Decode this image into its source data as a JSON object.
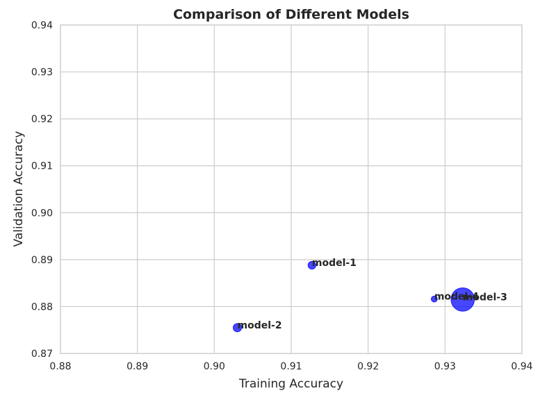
{
  "chart_data": {
    "type": "scatter",
    "title": "Comparison of Different Models",
    "xlabel": "Training Accuracy",
    "ylabel": "Validation Accuracy",
    "xlim": [
      0.88,
      0.94
    ],
    "ylim": [
      0.87,
      0.94
    ],
    "xticks": [
      "0.88",
      "0.89",
      "0.90",
      "0.91",
      "0.92",
      "0.93",
      "0.94"
    ],
    "yticks": [
      "0.87",
      "0.88",
      "0.89",
      "0.90",
      "0.91",
      "0.92",
      "0.93",
      "0.94"
    ],
    "grid": true,
    "marker_color": "#0000ff",
    "points": [
      {
        "label": "model-1",
        "x": 0.9127,
        "y": 0.8888,
        "size": 1.0
      },
      {
        "label": "model-2",
        "x": 0.903,
        "y": 0.8755,
        "size": 1.15
      },
      {
        "label": "model-3",
        "x": 0.9323,
        "y": 0.8815,
        "size": 9.0
      },
      {
        "label": "model-4",
        "x": 0.9286,
        "y": 0.8816,
        "size": 0.6
      }
    ]
  }
}
